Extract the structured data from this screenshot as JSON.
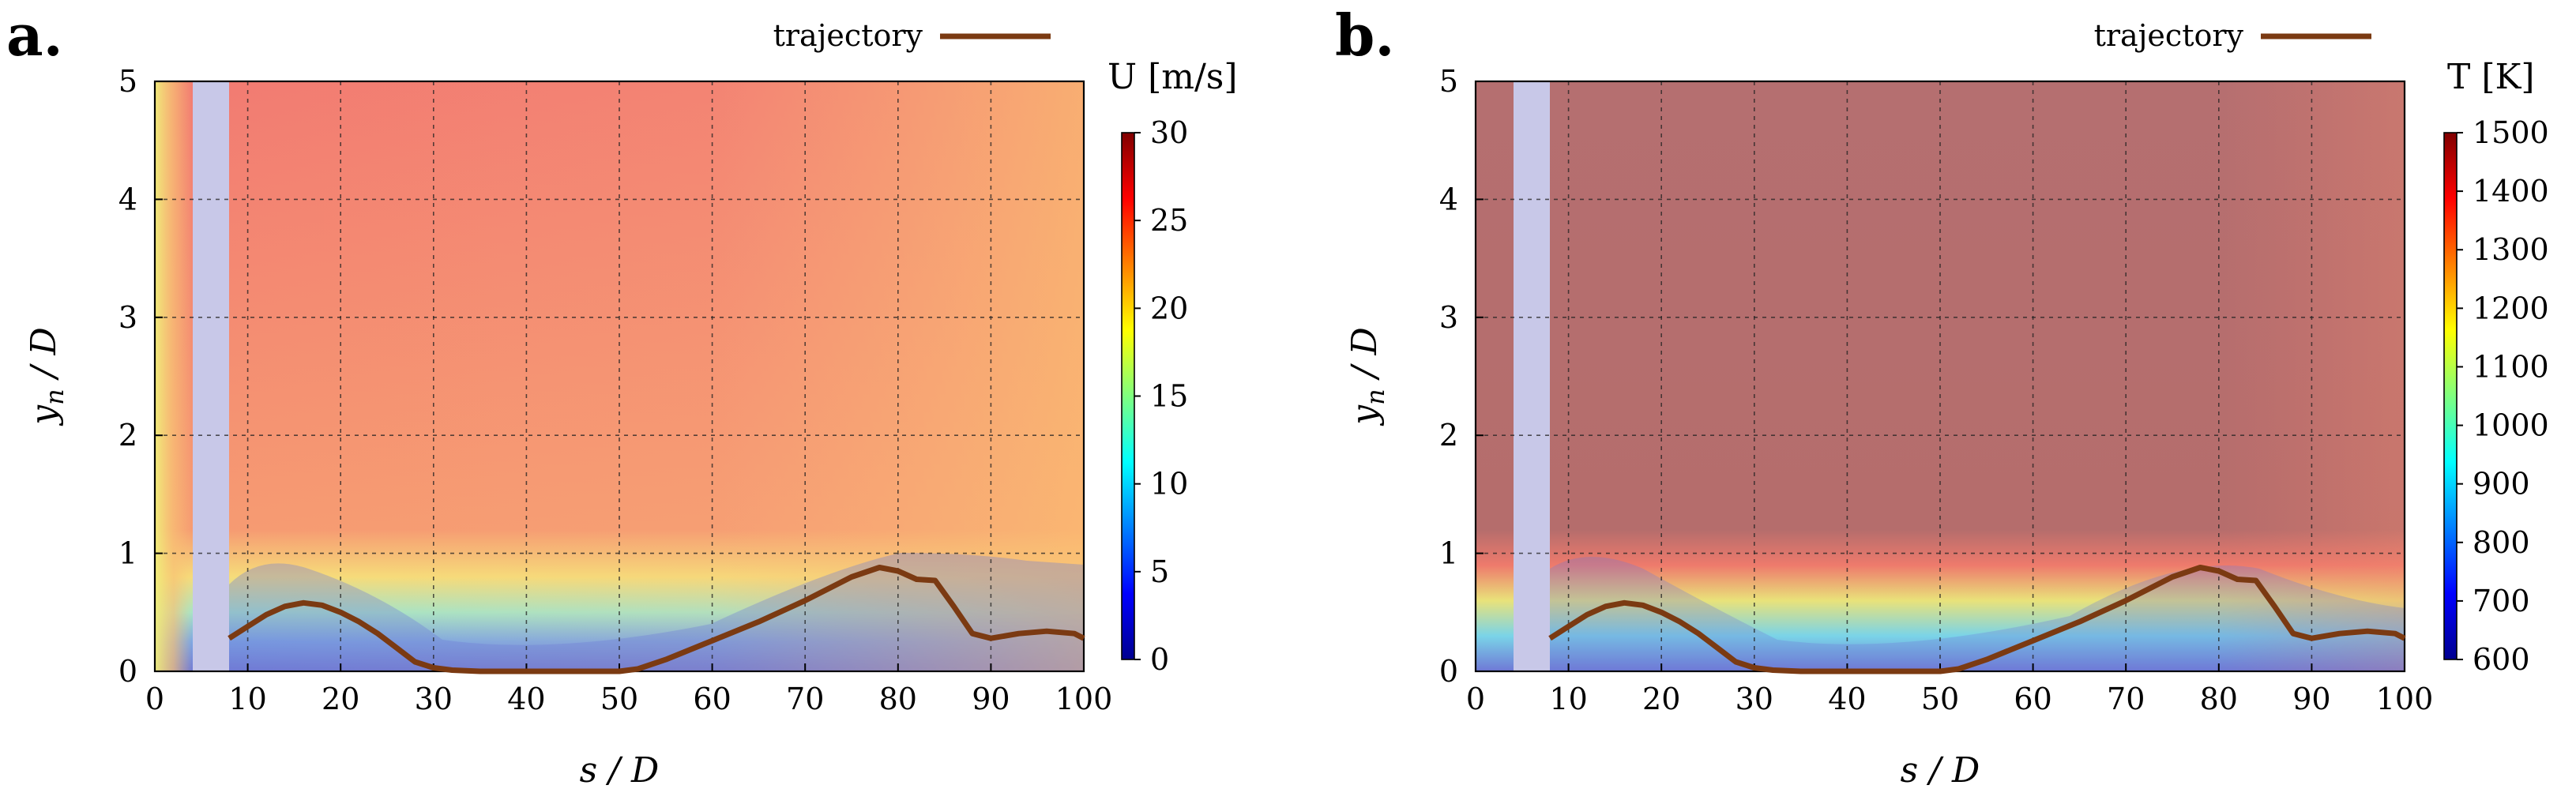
{
  "figure": {
    "panels": [
      {
        "label": "a.",
        "legend_text": "trajectory",
        "colorbar_title": "U [m/s]",
        "colorbar_ticks": [
          "0",
          "5",
          "10",
          "15",
          "20",
          "25",
          "30"
        ],
        "colorbar_range": [
          0,
          30
        ],
        "field": "velocity",
        "xlabel": "s/D",
        "ylabel": "y_n/D",
        "xticks": [
          "0",
          "10",
          "20",
          "30",
          "40",
          "50",
          "60",
          "70",
          "80",
          "90",
          "100"
        ],
        "yticks": [
          "0",
          "1",
          "2",
          "3",
          "4",
          "5"
        ]
      },
      {
        "label": "b.",
        "legend_text": "trajectory",
        "colorbar_title": "T [K]",
        "colorbar_ticks": [
          "600",
          "700",
          "800",
          "900",
          "1000",
          "1100",
          "1200",
          "1300",
          "1400",
          "1500"
        ],
        "colorbar_range": [
          600,
          1500
        ],
        "field": "temperature",
        "xlabel": "s/D",
        "ylabel": "y_n/D",
        "xticks": [
          "0",
          "10",
          "20",
          "30",
          "40",
          "50",
          "60",
          "70",
          "80",
          "90",
          "100"
        ],
        "yticks": [
          "0",
          "1",
          "2",
          "3",
          "4",
          "5"
        ]
      }
    ]
  },
  "chart_data": [
    {
      "type": "heatmap",
      "title": "",
      "xlabel": "s/D",
      "ylabel": "y_n/D",
      "xlim": [
        0,
        100
      ],
      "ylim": [
        0,
        5
      ],
      "colorbar": {
        "label": "U [m/s]",
        "range": [
          0,
          30
        ]
      },
      "masked_region_s": [
        4,
        8
      ],
      "series": [
        {
          "name": "trajectory",
          "color": "#7b3a12",
          "x": [
            8,
            10,
            12,
            14,
            16,
            18,
            20,
            22,
            24,
            26,
            28,
            30,
            32,
            35,
            40,
            45,
            50,
            52,
            55,
            60,
            65,
            70,
            75,
            78,
            80,
            82,
            84,
            86,
            88,
            90,
            93,
            96,
            99,
            100
          ],
          "y": [
            0.28,
            0.38,
            0.48,
            0.55,
            0.58,
            0.56,
            0.5,
            0.42,
            0.32,
            0.2,
            0.08,
            0.03,
            0.01,
            0.0,
            0.0,
            0.0,
            0.0,
            0.02,
            0.1,
            0.26,
            0.42,
            0.6,
            0.8,
            0.88,
            0.85,
            0.78,
            0.77,
            0.55,
            0.32,
            0.28,
            0.32,
            0.34,
            0.32,
            0.28
          ]
        }
      ]
    },
    {
      "type": "heatmap",
      "title": "",
      "xlabel": "s/D",
      "ylabel": "y_n/D",
      "xlim": [
        0,
        100
      ],
      "ylim": [
        0,
        5
      ],
      "colorbar": {
        "label": "T [K]",
        "range": [
          600,
          1500
        ]
      },
      "masked_region_s": [
        4,
        8
      ],
      "series": [
        {
          "name": "trajectory",
          "color": "#7b3a12",
          "x": [
            8,
            10,
            12,
            14,
            16,
            18,
            20,
            22,
            24,
            26,
            28,
            30,
            32,
            35,
            40,
            45,
            50,
            52,
            55,
            60,
            65,
            70,
            75,
            78,
            80,
            82,
            84,
            86,
            88,
            90,
            93,
            96,
            99,
            100
          ],
          "y": [
            0.28,
            0.38,
            0.48,
            0.55,
            0.58,
            0.56,
            0.5,
            0.42,
            0.32,
            0.2,
            0.08,
            0.03,
            0.01,
            0.0,
            0.0,
            0.0,
            0.0,
            0.02,
            0.1,
            0.26,
            0.42,
            0.6,
            0.8,
            0.88,
            0.85,
            0.78,
            0.77,
            0.55,
            0.32,
            0.28,
            0.32,
            0.34,
            0.32,
            0.28
          ]
        }
      ]
    }
  ]
}
